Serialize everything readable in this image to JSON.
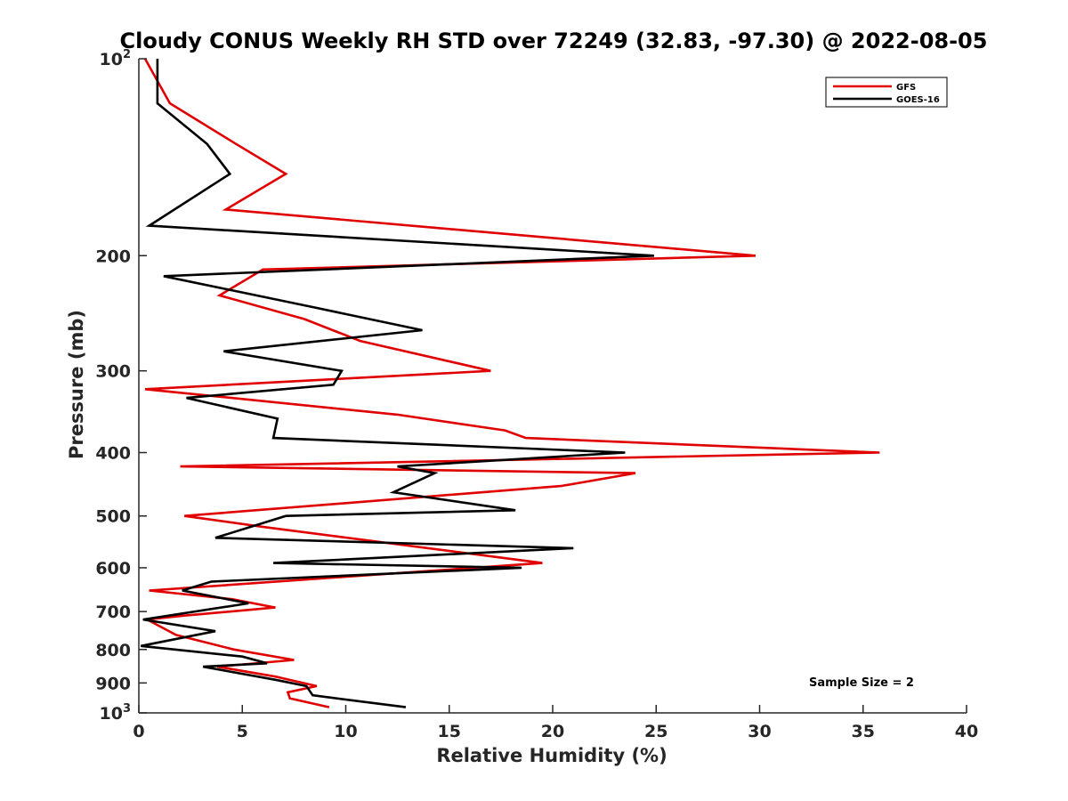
{
  "chart_data": {
    "type": "line",
    "title": "Cloudy CONUS Weekly RH STD over 72249 (32.83, -97.30) @ 2022-08-05",
    "xlabel": "Relative Humidity (%)",
    "ylabel": "Pressure (mb)",
    "xlim": [
      0,
      40
    ],
    "ylim": [
      100,
      1000
    ],
    "yscale": "log",
    "y_reversed": true,
    "x_ticks": [
      "0",
      "5",
      "10",
      "15",
      "20",
      "25",
      "30",
      "35",
      "40"
    ],
    "y_ticks": [
      {
        "value": 100,
        "base": "10",
        "exp": "2"
      },
      {
        "value": 200,
        "label": "200"
      },
      {
        "value": 300,
        "label": "300"
      },
      {
        "value": 400,
        "label": "400"
      },
      {
        "value": 500,
        "label": "500"
      },
      {
        "value": 600,
        "label": "600"
      },
      {
        "value": 700,
        "label": "700"
      },
      {
        "value": 800,
        "label": "800"
      },
      {
        "value": 900,
        "label": "900"
      },
      {
        "value": 1000,
        "base": "10",
        "exp": "3"
      }
    ],
    "legend_position": "top-right",
    "grid": false,
    "annotation": "Sample Size = 2",
    "series": [
      {
        "name": "GFS",
        "color": "#e00000",
        "points": [
          [
            0.3,
            100
          ],
          [
            1.5,
            117
          ],
          [
            4.7,
            135
          ],
          [
            7.1,
            150
          ],
          [
            4.2,
            170
          ],
          [
            29.8,
            200
          ],
          [
            6.0,
            210
          ],
          [
            3.9,
            230
          ],
          [
            8.0,
            250
          ],
          [
            10.7,
            270
          ],
          [
            17.0,
            300
          ],
          [
            0.3,
            320
          ],
          [
            12.5,
            350
          ],
          [
            17.7,
            370
          ],
          [
            18.7,
            380
          ],
          [
            35.8,
            400
          ],
          [
            2.0,
            420
          ],
          [
            24.0,
            430
          ],
          [
            20.4,
            450
          ],
          [
            2.2,
            500
          ],
          [
            6.1,
            520
          ],
          [
            19.5,
            590
          ],
          [
            0.5,
            650
          ],
          [
            4.5,
            670
          ],
          [
            6.6,
            690
          ],
          [
            2.2,
            710
          ],
          [
            0.4,
            720
          ],
          [
            1.8,
            760
          ],
          [
            4.6,
            800
          ],
          [
            7.5,
            830
          ],
          [
            3.8,
            850
          ],
          [
            6.6,
            880
          ],
          [
            8.6,
            910
          ],
          [
            7.2,
            930
          ],
          [
            7.3,
            950
          ],
          [
            9.2,
            980
          ]
        ]
      },
      {
        "name": "GOES-16",
        "color": "#000000",
        "points": [
          [
            0.9,
            100
          ],
          [
            0.9,
            117
          ],
          [
            3.3,
            135
          ],
          [
            4.4,
            150
          ],
          [
            0.5,
            180
          ],
          [
            24.9,
            200
          ],
          [
            1.2,
            215
          ],
          [
            8.5,
            240
          ],
          [
            13.7,
            260
          ],
          [
            4.1,
            280
          ],
          [
            9.8,
            300
          ],
          [
            9.4,
            315
          ],
          [
            2.3,
            330
          ],
          [
            6.7,
            355
          ],
          [
            6.5,
            380
          ],
          [
            23.5,
            400
          ],
          [
            12.5,
            420
          ],
          [
            14.3,
            430
          ],
          [
            12.3,
            460
          ],
          [
            18.2,
            490
          ],
          [
            7.1,
            500
          ],
          [
            3.7,
            540
          ],
          [
            21.0,
            560
          ],
          [
            6.5,
            590
          ],
          [
            18.5,
            600
          ],
          [
            3.5,
            630
          ],
          [
            2.1,
            650
          ],
          [
            5.3,
            680
          ],
          [
            0.2,
            720
          ],
          [
            3.7,
            750
          ],
          [
            0.1,
            790
          ],
          [
            5.0,
            820
          ],
          [
            6.2,
            840
          ],
          [
            3.1,
            850
          ],
          [
            6.6,
            890
          ],
          [
            8.1,
            910
          ],
          [
            8.4,
            940
          ],
          [
            12.9,
            980
          ]
        ]
      }
    ]
  }
}
